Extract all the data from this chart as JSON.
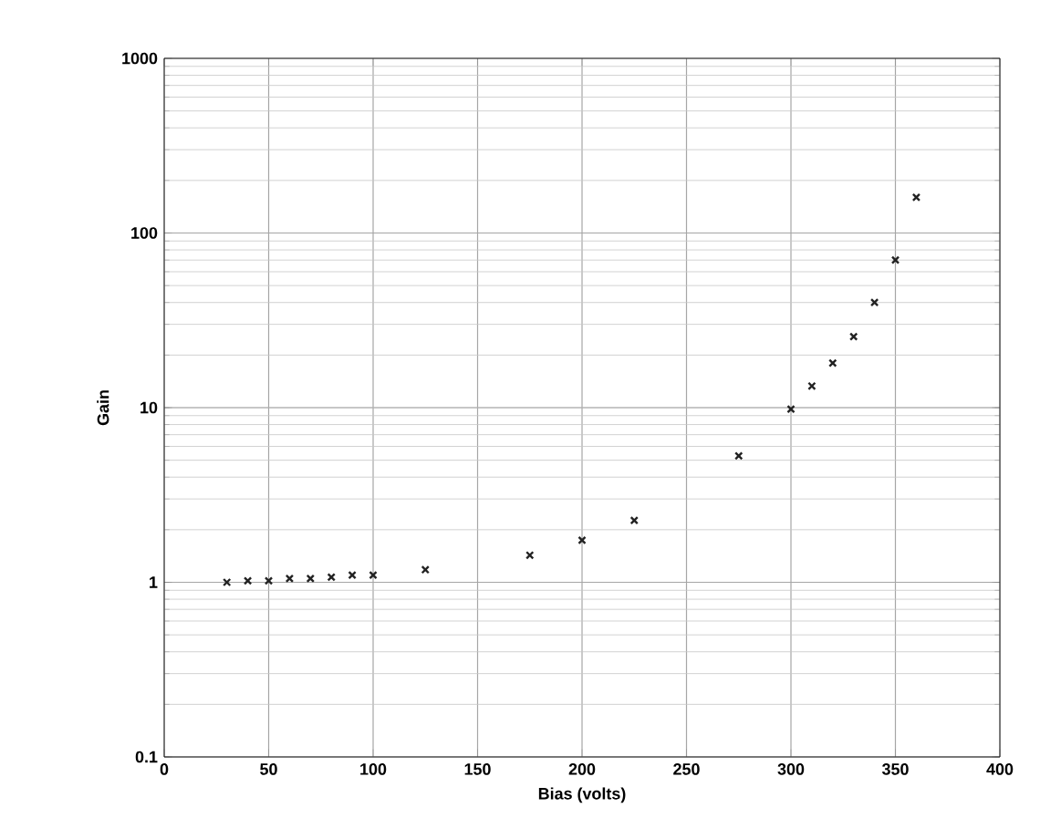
{
  "chart_data": {
    "type": "scatter",
    "xlabel": "Bias (volts)",
    "ylabel": "Gain",
    "x": [
      30,
      40,
      50,
      60,
      70,
      80,
      90,
      100,
      125,
      175,
      200,
      225,
      275,
      300,
      310,
      320,
      330,
      340,
      350,
      360
    ],
    "values": [
      1.0,
      1.02,
      1.02,
      1.05,
      1.05,
      1.07,
      1.1,
      1.1,
      1.18,
      1.43,
      1.74,
      2.26,
      5.3,
      9.8,
      13.3,
      18,
      25.5,
      40,
      70,
      160
    ],
    "color": "#222222",
    "marker": "cross",
    "log": "y",
    "grid": true,
    "xlim": [
      0,
      400
    ],
    "ylim": [
      0.1,
      1000
    ],
    "xticks": [
      0,
      50,
      100,
      150,
      200,
      250,
      300,
      350,
      400
    ],
    "yticks": [
      0.1,
      1,
      10,
      100,
      1000
    ]
  }
}
